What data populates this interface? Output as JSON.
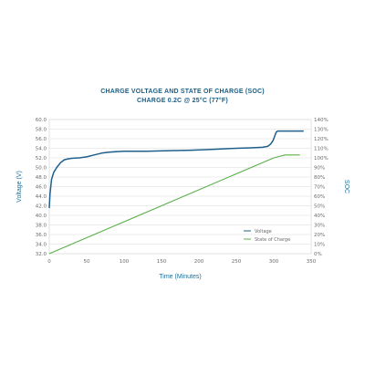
{
  "chart_data": {
    "type": "line",
    "title": "CHARGE VOLTAGE AND STATE OF CHARGE (SOC)",
    "subtitle": "CHARGE 0.2C @ 25°C (77°F)",
    "xlabel": "Time (Minutes)",
    "ylabel": "Voltage (V)",
    "y2label": "SOC",
    "xlim": [
      0,
      350
    ],
    "ylim": [
      32.0,
      60.0
    ],
    "y2lim": [
      0,
      140
    ],
    "x_tick_labels": [
      "0",
      "50",
      "100",
      "150",
      "200",
      "250",
      "300",
      "350"
    ],
    "y_tick_labels": [
      "32.0",
      "34.0",
      "36.0",
      "38.0",
      "40.0",
      "42.0",
      "44.0",
      "46.0",
      "48.0",
      "50.0",
      "52.0",
      "54.0",
      "56.0",
      "58.0",
      "60.0"
    ],
    "y2_tick_labels": [
      "0%",
      "10%",
      "20%",
      "30%",
      "40%",
      "50%",
      "60%",
      "70%",
      "80%",
      "90%",
      "100%",
      "110%",
      "120%",
      "130%",
      "140%"
    ],
    "grid": true,
    "legend_position": "lower-right",
    "series": [
      {
        "name": "Voltage",
        "color": "#1f5f8b",
        "axis": "left",
        "x": [
          0,
          1,
          3,
          6,
          10,
          15,
          20,
          25,
          30,
          40,
          50,
          60,
          70,
          80,
          100,
          130,
          160,
          190,
          220,
          250,
          270,
          285,
          292,
          296,
          299,
          301,
          303,
          305,
          310,
          320,
          340
        ],
        "y": [
          41.5,
          44.5,
          47.5,
          49.0,
          50.0,
          51.0,
          51.6,
          51.8,
          51.9,
          52.0,
          52.2,
          52.6,
          53.0,
          53.2,
          53.4,
          53.4,
          53.5,
          53.6,
          53.8,
          54.0,
          54.1,
          54.2,
          54.4,
          54.9,
          55.6,
          56.4,
          57.3,
          57.6,
          57.6,
          57.6,
          57.6
        ]
      },
      {
        "name": "State of Charge",
        "color": "#5ab04a",
        "axis": "right",
        "x": [
          0,
          300,
          315,
          335
        ],
        "y": [
          0,
          100,
          103,
          103
        ]
      }
    ]
  }
}
